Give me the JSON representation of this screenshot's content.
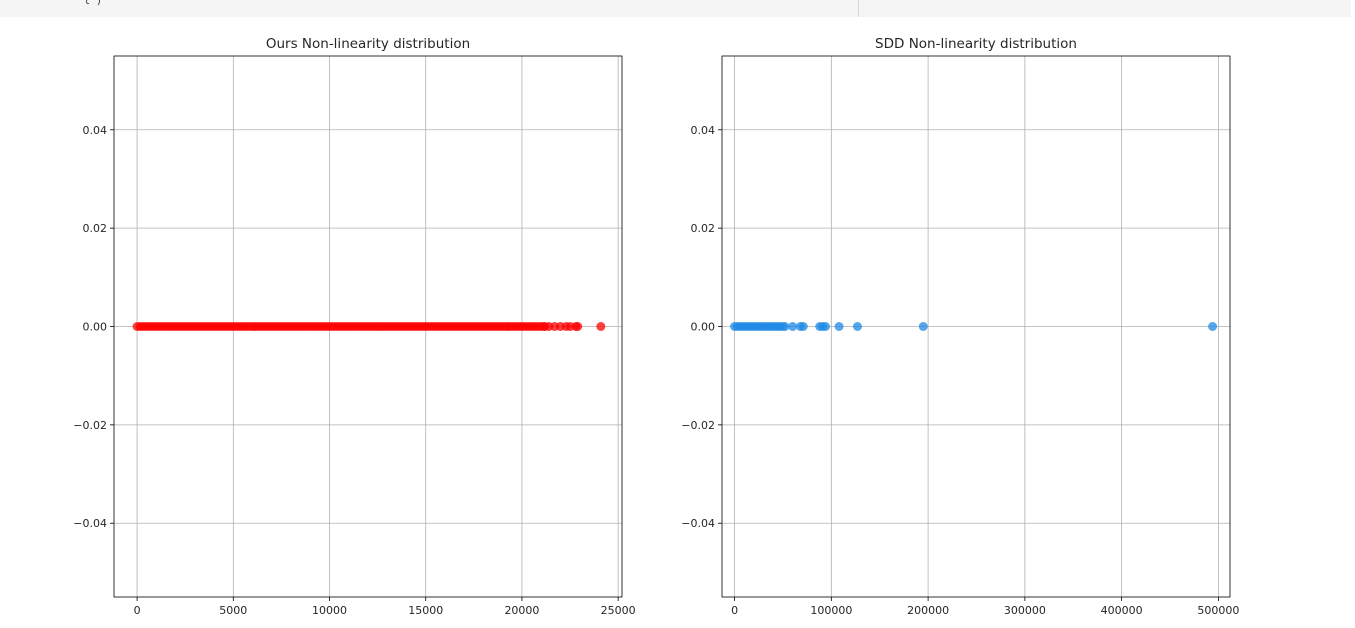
{
  "output_cell": {
    "code_fragment": "l )"
  },
  "chart_data": [
    {
      "type": "scatter",
      "title": "Ours Non-linearity distribution",
      "xlabel": "",
      "ylabel": "",
      "xlim": [
        -1200,
        25200
      ],
      "ylim": [
        -0.055,
        0.055
      ],
      "xticks": [
        0,
        5000,
        10000,
        15000,
        20000,
        25000
      ],
      "yticks": [
        0.04,
        0.02,
        0.0,
        -0.02,
        -0.04
      ],
      "xtick_labels": [
        "0",
        "5000",
        "10000",
        "15000",
        "20000",
        "25000"
      ],
      "ytick_labels": [
        "0.04",
        "0.02",
        "0.00",
        "−0.02",
        "−0.04"
      ],
      "grid": true,
      "marker_color": "#ff0000",
      "series": [
        {
          "values_dense_range": [
            0,
            21200
          ],
          "x": [
            21400,
            21700,
            22000,
            22300,
            22500,
            22800,
            22900,
            24100
          ],
          "y": 0.0
        }
      ]
    },
    {
      "type": "scatter",
      "title": "SDD Non-linearity distribution",
      "xlabel": "",
      "ylabel": "",
      "xlim": [
        -13000,
        512000
      ],
      "ylim": [
        -0.055,
        0.055
      ],
      "xticks": [
        0,
        100000,
        200000,
        300000,
        400000,
        500000
      ],
      "yticks": [
        0.04,
        0.02,
        0.0,
        -0.02,
        -0.04
      ],
      "xtick_labels": [
        "0",
        "100000",
        "200000",
        "300000",
        "400000",
        "500000"
      ],
      "ytick_labels": [
        "0.04",
        "0.02",
        "0.00",
        "−0.02",
        "−0.04"
      ],
      "grid": true,
      "marker_color": "#1e88e5",
      "series": [
        {
          "values_dense_range": [
            0,
            52000
          ],
          "x": [
            60000,
            68000,
            71000,
            88000,
            91000,
            94000,
            108000,
            127000,
            195000,
            494000
          ],
          "y": 0.0
        }
      ]
    }
  ]
}
